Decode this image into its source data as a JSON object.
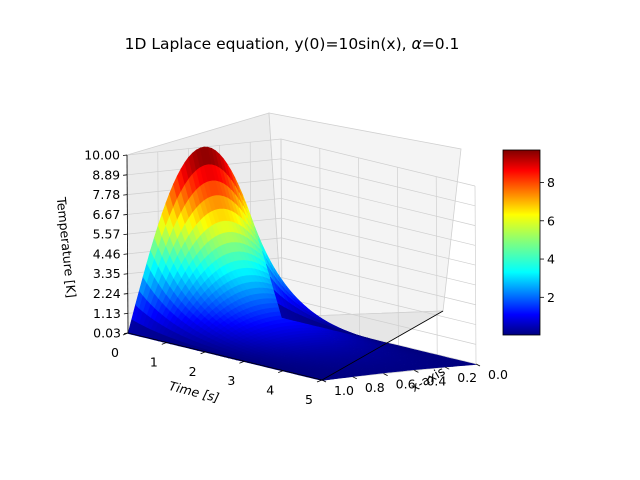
{
  "chart_data": {
    "type": "surface",
    "title": "1D Laplace equation, y(0)=10sin(x), α=0.1",
    "title_parts": {
      "prefix": "1D Laplace equation, y(0)=10sin(x), ",
      "alpha_symbol": "α",
      "suffix": "=0.1"
    },
    "xlabel": "x-axis",
    "ylabel": "Time [s]",
    "zlabel": "Temperature [K]",
    "x_ticks": [
      "0.0",
      "0.2",
      "0.4",
      "0.6",
      "0.8",
      "1.0"
    ],
    "y_ticks": [
      "0",
      "1",
      "2",
      "3",
      "4",
      "5"
    ],
    "z_ticks": [
      "0.03",
      "1.13",
      "2.24",
      "3.35",
      "4.46",
      "5.57",
      "6.67",
      "7.78",
      "8.89",
      "10.00"
    ],
    "xlim": [
      0,
      1
    ],
    "ylim": [
      0,
      5
    ],
    "zlim": [
      0.03,
      10.0
    ],
    "colormap": "jet",
    "colorbar_ticks": [
      "2",
      "4",
      "6",
      "8"
    ],
    "colorbar_range": [
      0.03,
      9.7
    ],
    "peak": {
      "x": 0.5,
      "time": 0,
      "temperature": 10.0
    },
    "grid": true
  }
}
